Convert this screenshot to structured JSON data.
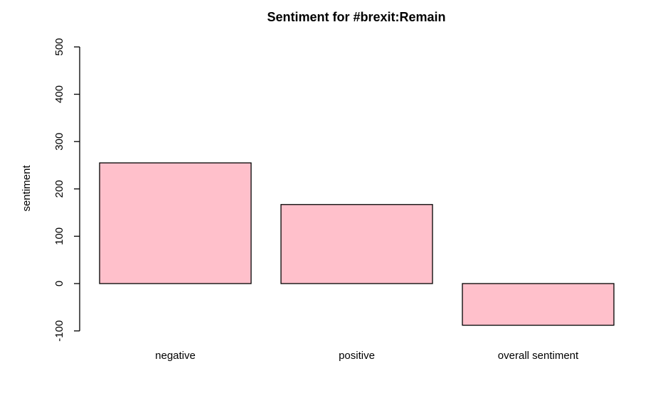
{
  "chart_data": {
    "type": "bar",
    "title": "Sentiment for #brexit:Remain",
    "xlabel": "",
    "ylabel": "sentiment",
    "categories": [
      "negative",
      "positive",
      "overall sentiment"
    ],
    "values": [
      255,
      167,
      -88
    ],
    "ylim": [
      -100,
      500
    ],
    "yticks": [
      -100,
      0,
      100,
      200,
      300,
      400,
      500
    ],
    "grid": false,
    "bar_color": "#FFC0CB",
    "border_color": "#000000"
  }
}
